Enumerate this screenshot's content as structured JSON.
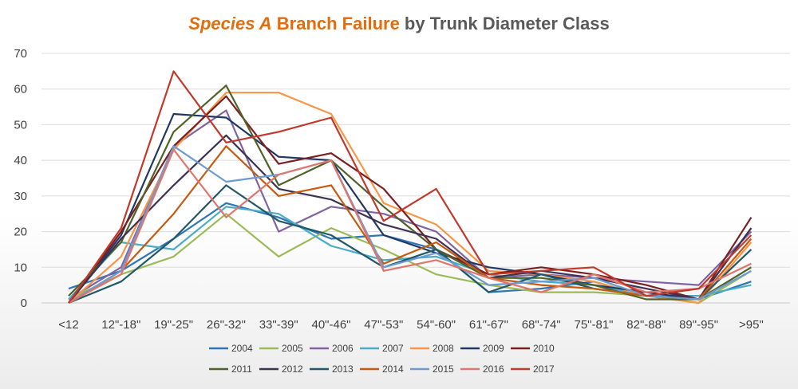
{
  "chart_data": {
    "type": "line",
    "title": {
      "highlight": "Species A",
      "accent": " Branch Failure",
      "rest": " by Trunk Diameter Class",
      "highlight_color": "#e46c0a",
      "rest_color": "#595959"
    },
    "xlabel": "",
    "ylabel": "",
    "ylim": [
      0,
      70
    ],
    "yticks": [
      0,
      10,
      20,
      30,
      40,
      50,
      60,
      70
    ],
    "grid": true,
    "legend": "bottom",
    "categories": [
      "<12",
      "12\"-18\"",
      "19\"-25\"",
      "26\"-32\"",
      "33\"-39\"",
      "40\"-46\"",
      "47\"-53\"",
      "54\"-60\"",
      "61\"-67\"",
      "68\"-74\"",
      "75\"-81\"",
      "82\"-88\"",
      "89\"-95\"",
      ">95\""
    ],
    "series": [
      {
        "name": "2004",
        "color": "#2e75b6",
        "values": [
          4,
          9,
          18,
          28,
          24,
          18,
          19,
          15,
          3,
          4,
          6,
          2,
          1,
          6
        ]
      },
      {
        "name": "2005",
        "color": "#9bbb59",
        "values": [
          1,
          8,
          13,
          25,
          13,
          21,
          15,
          8,
          5,
          3,
          3,
          2,
          0,
          9
        ]
      },
      {
        "name": "2006",
        "color": "#8064a2",
        "values": [
          1,
          10,
          44,
          54,
          20,
          27,
          25,
          20,
          7,
          8,
          7,
          6,
          5,
          20
        ]
      },
      {
        "name": "2007",
        "color": "#4bacc6",
        "values": [
          1,
          17,
          15,
          27,
          25,
          16,
          12,
          13,
          8,
          6,
          5,
          2,
          2,
          5
        ]
      },
      {
        "name": "2008",
        "color": "#f79646",
        "values": [
          0,
          13,
          43,
          59,
          59,
          53,
          28,
          22,
          9,
          8,
          6,
          2,
          0,
          17
        ]
      },
      {
        "name": "2009",
        "color": "#1f3864",
        "values": [
          0,
          19,
          53,
          52,
          41,
          40,
          19,
          14,
          10,
          8,
          5,
          3,
          1,
          21
        ]
      },
      {
        "name": "2010",
        "color": "#7b2022",
        "values": [
          0,
          20,
          44,
          58,
          39,
          42,
          32,
          15,
          8,
          10,
          8,
          5,
          1,
          24
        ]
      },
      {
        "name": "2011",
        "color": "#4f6228",
        "values": [
          2,
          17,
          48,
          61,
          33,
          40,
          27,
          15,
          7,
          7,
          5,
          1,
          1,
          10
        ]
      },
      {
        "name": "2012",
        "color": "#3f3151",
        "values": [
          0,
          18,
          33,
          47,
          32,
          29,
          22,
          18,
          7,
          9,
          7,
          4,
          1,
          21
        ]
      },
      {
        "name": "2013",
        "color": "#215967",
        "values": [
          0,
          6,
          18,
          33,
          23,
          19,
          10,
          15,
          3,
          8,
          4,
          2,
          1,
          15
        ]
      },
      {
        "name": "2014",
        "color": "#c55a11",
        "values": [
          0,
          9,
          25,
          44,
          30,
          33,
          11,
          17,
          7,
          5,
          4,
          2,
          1,
          18
        ]
      },
      {
        "name": "2015",
        "color": "#6d9bd1",
        "values": [
          0,
          9,
          44,
          34,
          36,
          40,
          10,
          14,
          5,
          6,
          7,
          2,
          1,
          9
        ]
      },
      {
        "name": "2016",
        "color": "#e0756c",
        "values": [
          0,
          8,
          43,
          24,
          36,
          40,
          9,
          12,
          7,
          3,
          8,
          3,
          4,
          11
        ]
      },
      {
        "name": "2017",
        "color": "#c0392b",
        "values": [
          0,
          21,
          65,
          45,
          48,
          52,
          23,
          32,
          8,
          9,
          10,
          2,
          4,
          19
        ]
      }
    ]
  }
}
